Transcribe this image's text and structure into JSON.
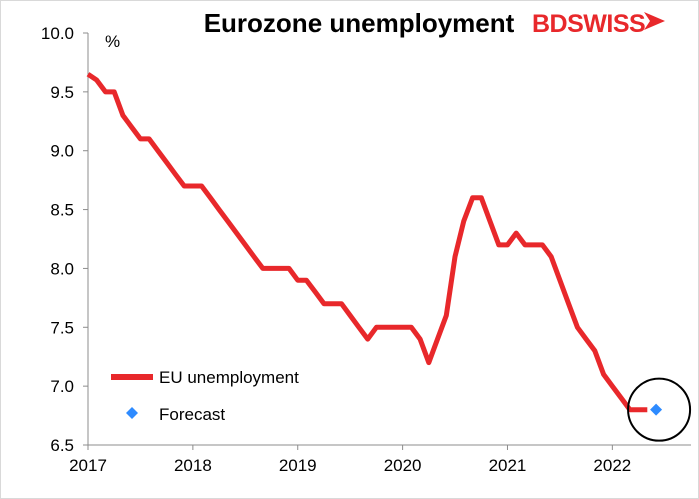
{
  "chart_data": {
    "type": "line",
    "title": "Eurozone unemployment",
    "unit_label": "%",
    "xlabel": "",
    "ylabel": "",
    "xlim": [
      2017.0,
      2022.75
    ],
    "ylim": [
      6.5,
      10.0
    ],
    "y_ticks": [
      6.5,
      7.0,
      7.5,
      8.0,
      8.5,
      9.0,
      9.5,
      10.0
    ],
    "y_tick_labels": [
      "6.5",
      "7.0",
      "7.5",
      "8.0",
      "8.5",
      "9.0",
      "9.5",
      "10.0"
    ],
    "x_ticks": [
      2017,
      2018,
      2019,
      2020,
      2021,
      2022
    ],
    "x_tick_labels": [
      "2017",
      "2018",
      "2019",
      "2020",
      "2021",
      "2022"
    ],
    "grid": false,
    "legend_position": "bottom-left",
    "series": [
      {
        "name": "EU unemployment",
        "color": "#e8282b",
        "style": "line",
        "points": [
          [
            2017.0,
            9.65
          ],
          [
            2017.083,
            9.6
          ],
          [
            2017.167,
            9.5
          ],
          [
            2017.25,
            9.5
          ],
          [
            2017.333,
            9.3
          ],
          [
            2017.417,
            9.2
          ],
          [
            2017.5,
            9.1
          ],
          [
            2017.583,
            9.1
          ],
          [
            2017.667,
            9.0
          ],
          [
            2017.75,
            8.9
          ],
          [
            2017.833,
            8.8
          ],
          [
            2017.917,
            8.7
          ],
          [
            2018.0,
            8.7
          ],
          [
            2018.083,
            8.7
          ],
          [
            2018.167,
            8.6
          ],
          [
            2018.25,
            8.5
          ],
          [
            2018.333,
            8.4
          ],
          [
            2018.417,
            8.3
          ],
          [
            2018.5,
            8.2
          ],
          [
            2018.583,
            8.1
          ],
          [
            2018.667,
            8.0
          ],
          [
            2018.75,
            8.0
          ],
          [
            2018.833,
            8.0
          ],
          [
            2018.917,
            8.0
          ],
          [
            2019.0,
            7.9
          ],
          [
            2019.083,
            7.9
          ],
          [
            2019.167,
            7.8
          ],
          [
            2019.25,
            7.7
          ],
          [
            2019.333,
            7.7
          ],
          [
            2019.417,
            7.7
          ],
          [
            2019.5,
            7.6
          ],
          [
            2019.583,
            7.5
          ],
          [
            2019.667,
            7.4
          ],
          [
            2019.75,
            7.5
          ],
          [
            2019.833,
            7.5
          ],
          [
            2019.917,
            7.5
          ],
          [
            2020.0,
            7.5
          ],
          [
            2020.083,
            7.5
          ],
          [
            2020.167,
            7.4
          ],
          [
            2020.25,
            7.2
          ],
          [
            2020.333,
            7.4
          ],
          [
            2020.417,
            7.6
          ],
          [
            2020.5,
            8.1
          ],
          [
            2020.583,
            8.4
          ],
          [
            2020.667,
            8.6
          ],
          [
            2020.75,
            8.6
          ],
          [
            2020.833,
            8.4
          ],
          [
            2020.917,
            8.2
          ],
          [
            2021.0,
            8.2
          ],
          [
            2021.083,
            8.3
          ],
          [
            2021.167,
            8.2
          ],
          [
            2021.25,
            8.2
          ],
          [
            2021.333,
            8.2
          ],
          [
            2021.417,
            8.1
          ],
          [
            2021.5,
            7.9
          ],
          [
            2021.583,
            7.7
          ],
          [
            2021.667,
            7.5
          ],
          [
            2021.75,
            7.4
          ],
          [
            2021.833,
            7.3
          ],
          [
            2021.917,
            7.1
          ],
          [
            2022.0,
            7.0
          ],
          [
            2022.083,
            6.9
          ],
          [
            2022.167,
            6.8
          ],
          [
            2022.25,
            6.8
          ],
          [
            2022.333,
            6.8
          ]
        ]
      },
      {
        "name": "Forecast",
        "color": "#2e8bff",
        "style": "marker-diamond",
        "points": [
          [
            2022.417,
            6.8
          ]
        ]
      }
    ],
    "annotations": [
      {
        "type": "circle",
        "x": 2022.417,
        "y": 6.8,
        "color": "#000000"
      }
    ]
  },
  "logo": {
    "text_part1": "BD",
    "text_part2": "SWISS",
    "color": "#e8282b"
  }
}
